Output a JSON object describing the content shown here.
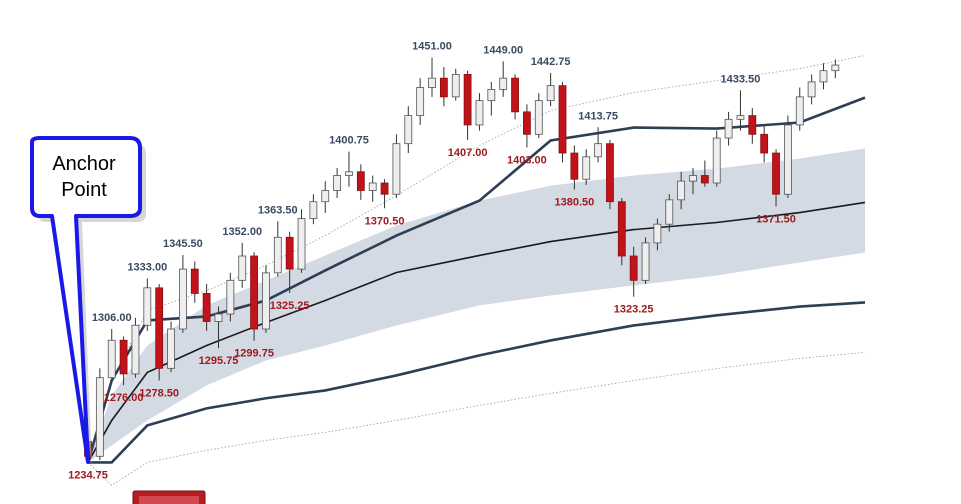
{
  "chart_data": {
    "type": "candlestick",
    "xlim": [
      0,
      65.5
    ],
    "ylim": [
      1220,
      1470
    ],
    "up_color": "#eeeeee",
    "down_color": "#c0141a",
    "open": [
      1246,
      1238,
      1280,
      1300,
      1282,
      1308,
      1328,
      1285,
      1306,
      1338,
      1325,
      1310,
      1314,
      1332,
      1345,
      1306,
      1336,
      1355,
      1338,
      1365,
      1374,
      1380,
      1388,
      1390,
      1380,
      1384,
      1378,
      1405,
      1420,
      1435,
      1440,
      1430,
      1442,
      1415,
      1428,
      1434,
      1440,
      1422,
      1410,
      1428,
      1436,
      1400,
      1386,
      1398,
      1405,
      1374,
      1345,
      1332,
      1352,
      1362,
      1375,
      1385,
      1388,
      1384,
      1408,
      1418,
      1420,
      1410,
      1400,
      1378,
      1415,
      1430,
      1438,
      1444
    ],
    "high": [
      1252,
      1285,
      1306,
      1302,
      1312,
      1333,
      1330,
      1310,
      1345.5,
      1342,
      1330,
      1318,
      1336,
      1352,
      1347,
      1340,
      1363.5,
      1358,
      1370,
      1378,
      1385,
      1392,
      1400.75,
      1394,
      1388,
      1386,
      1410,
      1425,
      1440,
      1451,
      1446,
      1445,
      1444,
      1432,
      1438,
      1449,
      1442,
      1426,
      1432,
      1442.75,
      1438,
      1404,
      1402,
      1413.75,
      1407,
      1376,
      1350,
      1355,
      1365,
      1378,
      1390,
      1392,
      1396,
      1412,
      1422,
      1433.5,
      1424,
      1415,
      1402,
      1420,
      1435,
      1442,
      1448,
      1450
    ],
    "low": [
      1234.75,
      1236,
      1278,
      1276,
      1280,
      1305,
      1278.5,
      1283,
      1304,
      1320,
      1305,
      1295.75,
      1310,
      1328,
      1299.75,
      1304,
      1334,
      1325.25,
      1336,
      1362,
      1368,
      1376,
      1382,
      1375,
      1374,
      1370.5,
      1376,
      1400,
      1415,
      1430,
      1425,
      1428,
      1407,
      1412,
      1420,
      1430,
      1418,
      1403,
      1408,
      1425,
      1395,
      1380.5,
      1383,
      1395,
      1370,
      1340,
      1323.25,
      1330,
      1348,
      1358,
      1370,
      1378,
      1382,
      1382,
      1404,
      1412,
      1405,
      1395,
      1371.5,
      1376,
      1412,
      1426,
      1434,
      1440
    ],
    "close": [
      1238,
      1280,
      1300,
      1282,
      1308,
      1328,
      1285,
      1306,
      1338,
      1325,
      1310,
      1314,
      1332,
      1345,
      1306,
      1336,
      1355,
      1338,
      1365,
      1374,
      1380,
      1388,
      1390,
      1380,
      1384,
      1378,
      1405,
      1420,
      1435,
      1440,
      1430,
      1442,
      1415,
      1428,
      1434,
      1440,
      1422,
      1410,
      1428,
      1436,
      1400,
      1386,
      1398,
      1405,
      1374,
      1345,
      1332,
      1352,
      1362,
      1375,
      1385,
      1388,
      1384,
      1408,
      1418,
      1420,
      1410,
      1400,
      1378,
      1415,
      1430,
      1438,
      1444,
      1447
    ],
    "bands": {
      "x": [
        0,
        2,
        5,
        10,
        15,
        20,
        26,
        33,
        39,
        46,
        53,
        60,
        65.5
      ],
      "mid": [
        1234.75,
        1257.2,
        1282.8,
        1297.2,
        1309.5,
        1321.2,
        1336.2,
        1345.3,
        1352.7,
        1359.1,
        1362.9,
        1368.2,
        1373.6
      ],
      "upper1": [
        1234.75,
        1270.5,
        1297.2,
        1318.6,
        1331.9,
        1345.3,
        1361.3,
        1374.6,
        1382.6,
        1388.0,
        1391.7,
        1397.1,
        1402.4
      ],
      "lower1": [
        1234.75,
        1243.8,
        1257.2,
        1275.9,
        1289.2,
        1297.2,
        1307.9,
        1318.6,
        1323.9,
        1329.3,
        1334.6,
        1341.5,
        1346.9
      ],
      "upper2": [
        1234.75,
        1278.5,
        1310.6,
        1312.7,
        1321.2,
        1337.3,
        1355.9,
        1374.6,
        1406.7,
        1413.6,
        1413.1,
        1416.3,
        1429.6
      ],
      "lower2": [
        1234.75,
        1234.75,
        1254.5,
        1263.6,
        1269.0,
        1273.2,
        1281.2,
        1291.9,
        1299.9,
        1307.9,
        1313.3,
        1318.0,
        1320.2
      ],
      "upper3": [
        1234.75,
        1278.5,
        1315.9,
        1326.6,
        1339.9,
        1355.9,
        1377.3,
        1404.0,
        1422.7,
        1432.3,
        1438.7,
        1445.1,
        1452.1
      ],
      "lower3": [
        1234.75,
        1222.5,
        1234.75,
        1241.2,
        1246.5,
        1250.8,
        1257.2,
        1265.2,
        1271.6,
        1278.5,
        1284.9,
        1290.3,
        1293.5
      ],
      "band_color": "#d3dae3",
      "line2_color": "#2e3e55",
      "mid_color": "#1a1a1a",
      "line3_color": "#9a9a9a"
    },
    "high_label_color": "#3a4a63",
    "low_label_color": "#a0191e",
    "annotations": [
      {
        "label": "1234.75",
        "candle": 0,
        "at": "low"
      },
      {
        "label": "1306.00",
        "candle": 2,
        "at": "high"
      },
      {
        "label": "1276.00",
        "candle": 3,
        "at": "low"
      },
      {
        "label": "1333.00",
        "candle": 5,
        "at": "high"
      },
      {
        "label": "1278.50",
        "candle": 6,
        "at": "low"
      },
      {
        "label": "1345.50",
        "candle": 8,
        "at": "high"
      },
      {
        "label": "1295.75",
        "candle": 11,
        "at": "low"
      },
      {
        "label": "1352.00",
        "candle": 13,
        "at": "high"
      },
      {
        "label": "1299.75",
        "candle": 14,
        "at": "low"
      },
      {
        "label": "1363.50",
        "candle": 16,
        "at": "high"
      },
      {
        "label": "1325.25",
        "candle": 17,
        "at": "low"
      },
      {
        "label": "1400.75",
        "candle": 22,
        "at": "high"
      },
      {
        "label": "1370.50",
        "candle": 25,
        "at": "low"
      },
      {
        "label": "1451.00",
        "candle": 29,
        "at": "high"
      },
      {
        "label": "1407.00",
        "candle": 32,
        "at": "low"
      },
      {
        "label": "1449.00",
        "candle": 35,
        "at": "high"
      },
      {
        "label": "1403.00",
        "candle": 37,
        "at": "low"
      },
      {
        "label": "1442.75",
        "candle": 39,
        "at": "high"
      },
      {
        "label": "1380.50",
        "candle": 41,
        "at": "low"
      },
      {
        "label": "1413.75",
        "candle": 43,
        "at": "high"
      },
      {
        "label": "1323.25",
        "candle": 46,
        "at": "low"
      },
      {
        "label": "1433.50",
        "candle": 55,
        "at": "high"
      },
      {
        "label": "1371.50",
        "candle": 58,
        "at": "low"
      }
    ],
    "callout": {
      "lines": [
        "Anchor",
        "Point"
      ]
    }
  }
}
